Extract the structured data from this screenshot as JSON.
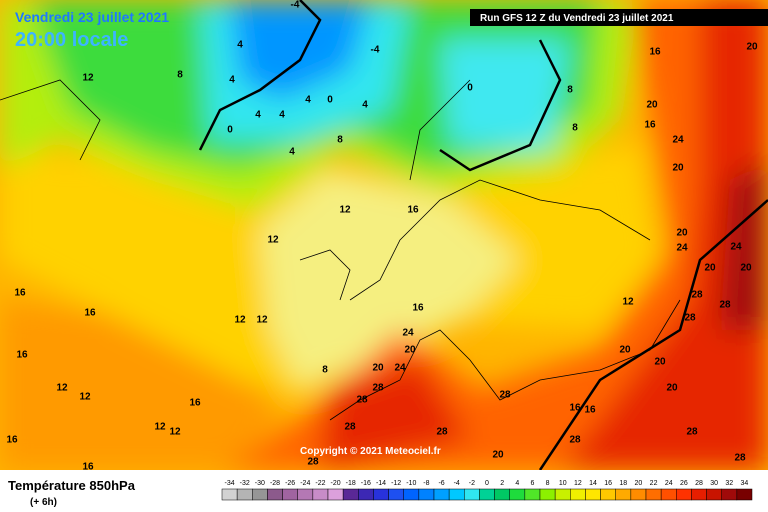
{
  "header": {
    "date": "Vendredi 23 juillet 2021",
    "time": "20:00 locale",
    "run": "Run GFS 12 Z du Vendredi 23 juillet 2021"
  },
  "copyright": "Copyright © 2021 Meteociel.fr",
  "footer": {
    "title": "Température 850hPa",
    "step": "(+ 6h)"
  },
  "map_labels": [
    12,
    8,
    4,
    4,
    0,
    4,
    4,
    4,
    0,
    4,
    -4,
    -4,
    0,
    8,
    8,
    16,
    20,
    20,
    16,
    24,
    20,
    8,
    4,
    12,
    16,
    12,
    12,
    12,
    16,
    16,
    16,
    12,
    12,
    16,
    12,
    12,
    16,
    16,
    8,
    20,
    24,
    20,
    24,
    16,
    12,
    20,
    20,
    20,
    24,
    20,
    28,
    28,
    28,
    20,
    28,
    28,
    28,
    28,
    28,
    20,
    28,
    28,
    28,
    28,
    16,
    16,
    24,
    20
  ],
  "scale": {
    "labels": [
      -34,
      -32,
      -30,
      -28,
      -26,
      -24,
      -22,
      -20,
      -18,
      -16,
      -14,
      -12,
      -10,
      -8,
      -6,
      -4,
      -2,
      0,
      2,
      4,
      6,
      8,
      10,
      12,
      14,
      16,
      18,
      20,
      22,
      24,
      26,
      28,
      30,
      32,
      34
    ],
    "colors": [
      "#d2d2d2",
      "#b4b4b4",
      "#969696",
      "#8c5a8c",
      "#a064a0",
      "#b478b4",
      "#c88cc8",
      "#dca0dc",
      "#5a2896",
      "#3c28b4",
      "#2832dc",
      "#1e50f0",
      "#0064ff",
      "#0082ff",
      "#00a0ff",
      "#00c8ff",
      "#30e6f0",
      "#00d296",
      "#00c864",
      "#1edc3c",
      "#50e628",
      "#8cf000",
      "#c8f000",
      "#f0f000",
      "#ffe600",
      "#ffc800",
      "#ffaa00",
      "#ff8c00",
      "#ff6e00",
      "#ff5000",
      "#ff3200",
      "#e61e00",
      "#c81400",
      "#a00a0a",
      "#780000"
    ]
  }
}
